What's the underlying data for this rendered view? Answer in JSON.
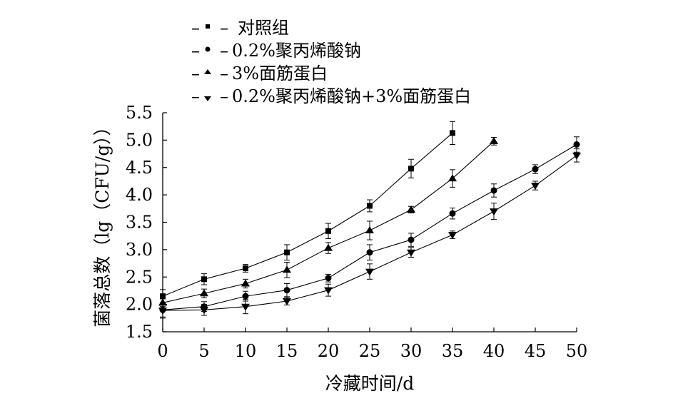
{
  "chart_data": {
    "type": "line",
    "title": "",
    "xlabel": "冷藏时间/d",
    "ylabel": "菌落总数（lg（CFU/g））",
    "xlim": [
      0,
      50
    ],
    "ylim": [
      1.5,
      5.5
    ],
    "x_ticks": [
      "0",
      "5",
      "10",
      "15",
      "20",
      "25",
      "30",
      "35",
      "40",
      "45",
      "50"
    ],
    "y_ticks": [
      "1.5",
      "2.0",
      "2.5",
      "3.0",
      "3.5",
      "4.0",
      "4.5",
      "5.0",
      "5.5"
    ],
    "grid": false,
    "legend_position": "top",
    "series": [
      {
        "name": "对照组",
        "marker": "square",
        "x": [
          0,
          5,
          10,
          15,
          20,
          25,
          30,
          35
        ],
        "values": [
          2.15,
          2.46,
          2.66,
          2.95,
          3.34,
          3.8,
          4.48,
          5.13
        ],
        "errors": [
          0.12,
          0.1,
          0.07,
          0.14,
          0.14,
          0.11,
          0.17,
          0.21
        ]
      },
      {
        "name": "0.2%聚丙烯酸钠",
        "marker": "circle",
        "x": [
          0,
          5,
          10,
          15,
          20,
          25,
          30,
          35,
          40,
          45,
          50
        ],
        "values": [
          1.9,
          1.96,
          2.15,
          2.26,
          2.48,
          2.95,
          3.18,
          3.66,
          4.08,
          4.47,
          4.92
        ],
        "errors": [
          0.13,
          0.09,
          0.09,
          0.12,
          0.07,
          0.14,
          0.12,
          0.1,
          0.12,
          0.08,
          0.14
        ]
      },
      {
        "name": "3%面筋蛋白",
        "marker": "triangle-up",
        "x": [
          0,
          5,
          10,
          15,
          20,
          25,
          30,
          35,
          40
        ],
        "values": [
          2.03,
          2.2,
          2.38,
          2.63,
          3.03,
          3.35,
          3.73,
          4.3,
          4.98
        ]
      },
      {
        "name": "0.2%聚丙烯酸钠+3%面筋蛋白",
        "marker": "triangle-down",
        "x": [
          0,
          5,
          10,
          15,
          20,
          25,
          30,
          35,
          40,
          45,
          50
        ],
        "values": [
          1.89,
          1.9,
          1.96,
          2.06,
          2.26,
          2.6,
          2.95,
          3.27,
          3.7,
          4.17,
          4.72
        ],
        "errors": [
          0.14,
          0.1,
          0.13,
          0.07,
          0.11,
          0.14,
          0.09,
          0.07,
          0.15,
          0.08,
          0.12
        ]
      }
    ],
    "third_series_errors": [
      0.07,
      0.08,
      0.08,
      0.14,
      0.1,
      0.17,
      0.06,
      0.16,
      0.07
    ]
  }
}
